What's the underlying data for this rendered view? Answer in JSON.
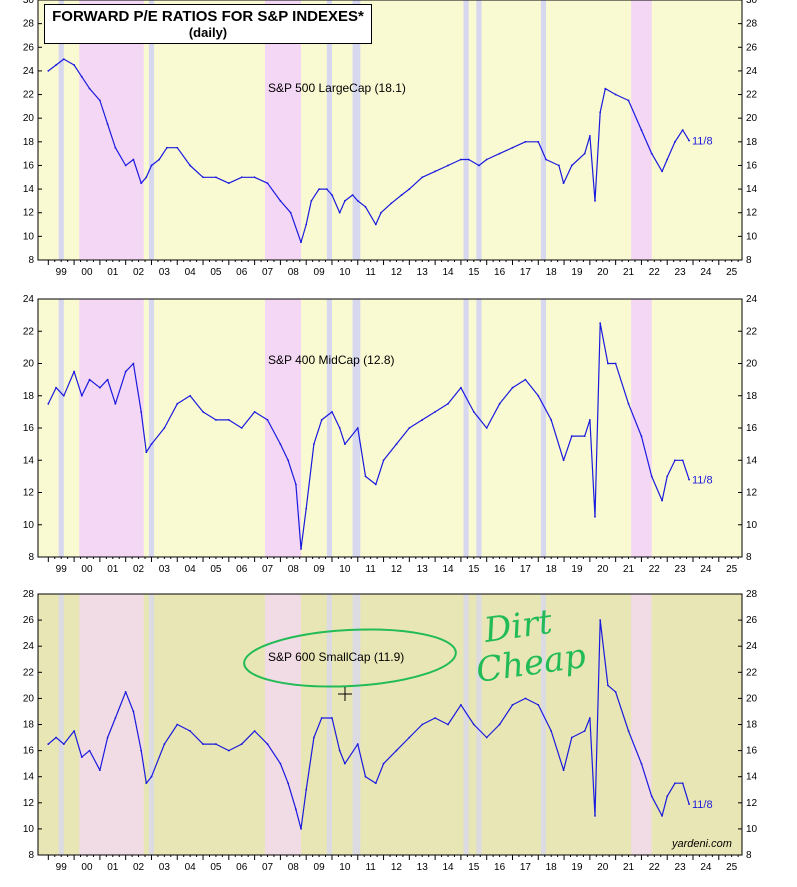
{
  "title": {
    "line1": "FORWARD P/E RATIOS FOR S&P INDEXES*",
    "line2": "(daily)"
  },
  "watermark": "yardeni.com",
  "handwritten_note": "Dirt Cheap",
  "colors": {
    "series": "#1a1adf",
    "background": "#fafad2",
    "bottom_background": "#e8e6b4",
    "recession_shade": "#f4d7f4",
    "correction_shade": "#d7d7f0",
    "annotation": "#22bb55"
  },
  "chart_data": [
    {
      "type": "line",
      "title": "S&P 500 LargeCap (18.1)",
      "end_label": "11/8",
      "x_ticks": [
        "99",
        "00",
        "01",
        "02",
        "03",
        "04",
        "05",
        "06",
        "07",
        "08",
        "09",
        "10",
        "11",
        "12",
        "13",
        "14",
        "15",
        "16",
        "17",
        "18",
        "19",
        "20",
        "21",
        "22",
        "23",
        "24",
        "25"
      ],
      "ylim": [
        8,
        30
      ],
      "y_ticks": [
        8,
        10,
        12,
        14,
        16,
        18,
        20,
        22,
        24,
        26,
        28,
        30
      ],
      "series": [
        {
          "x": [
            1999.0,
            1999.3,
            1999.6,
            2000.0,
            2000.3,
            2000.6,
            2001.0,
            2001.3,
            2001.6,
            2002.0,
            2002.3,
            2002.6,
            2002.8,
            2003.0,
            2003.3,
            2003.6,
            2004.0,
            2004.5,
            2005.0,
            2005.5,
            2006.0,
            2006.5,
            2007.0,
            2007.5,
            2008.0,
            2008.4,
            2008.8,
            2009.0,
            2009.2,
            2009.5,
            2009.8,
            2010.0,
            2010.3,
            2010.5,
            2010.8,
            2011.0,
            2011.3,
            2011.7,
            2011.9,
            2012.3,
            2012.7,
            2013.0,
            2013.5,
            2014.0,
            2014.5,
            2015.0,
            2015.3,
            2015.7,
            2016.0,
            2016.5,
            2017.0,
            2017.5,
            2018.0,
            2018.3,
            2018.8,
            2018.98,
            2019.3,
            2019.8,
            2020.0,
            2020.2,
            2020.4,
            2020.6,
            2021.0,
            2021.5,
            2022.0,
            2022.4,
            2022.8,
            2023.0,
            2023.3,
            2023.6,
            2023.85
          ],
          "y": [
            24.0,
            24.5,
            25.0,
            24.5,
            23.5,
            22.5,
            21.5,
            19.5,
            17.5,
            16.0,
            16.5,
            14.5,
            15.0,
            16.0,
            16.5,
            17.5,
            17.5,
            16.0,
            15.0,
            15.0,
            14.5,
            15.0,
            15.0,
            14.5,
            13.0,
            12.0,
            9.5,
            11.0,
            13.0,
            14.0,
            14.0,
            13.5,
            12.0,
            13.0,
            13.5,
            13.0,
            12.5,
            11.0,
            12.0,
            12.8,
            13.5,
            14.0,
            15.0,
            15.5,
            16.0,
            16.5,
            16.5,
            16.0,
            16.5,
            17.0,
            17.5,
            18.0,
            18.0,
            16.5,
            16.0,
            14.5,
            16.0,
            17.0,
            18.5,
            13.0,
            20.5,
            22.5,
            22.0,
            21.5,
            19.0,
            17.0,
            15.5,
            16.5,
            18.0,
            19.0,
            18.1
          ]
        }
      ]
    },
    {
      "type": "line",
      "title": "S&P 400 MidCap (12.8)",
      "end_label": "11/8",
      "x_ticks": [
        "99",
        "00",
        "01",
        "02",
        "03",
        "04",
        "05",
        "06",
        "07",
        "08",
        "09",
        "10",
        "11",
        "12",
        "13",
        "14",
        "15",
        "16",
        "17",
        "18",
        "19",
        "20",
        "21",
        "22",
        "23",
        "24",
        "25"
      ],
      "ylim": [
        8,
        24
      ],
      "y_ticks": [
        8,
        10,
        12,
        14,
        16,
        18,
        20,
        22,
        24
      ],
      "series": [
        {
          "x": [
            1999.0,
            1999.3,
            1999.6,
            2000.0,
            2000.3,
            2000.6,
            2001.0,
            2001.3,
            2001.6,
            2002.0,
            2002.3,
            2002.6,
            2002.8,
            2003.0,
            2003.5,
            2004.0,
            2004.5,
            2005.0,
            2005.5,
            2006.0,
            2006.5,
            2007.0,
            2007.5,
            2008.0,
            2008.3,
            2008.6,
            2008.8,
            2009.0,
            2009.3,
            2009.6,
            2010.0,
            2010.3,
            2010.5,
            2011.0,
            2011.3,
            2011.7,
            2012.0,
            2012.5,
            2013.0,
            2013.5,
            2014.0,
            2014.5,
            2015.0,
            2015.5,
            2016.0,
            2016.5,
            2017.0,
            2017.5,
            2018.0,
            2018.5,
            2018.98,
            2019.3,
            2019.8,
            2020.0,
            2020.2,
            2020.4,
            2020.7,
            2021.0,
            2021.5,
            2022.0,
            2022.4,
            2022.8,
            2023.0,
            2023.3,
            2023.6,
            2023.85
          ],
          "y": [
            17.5,
            18.5,
            18.0,
            19.5,
            18.0,
            19.0,
            18.5,
            19.0,
            17.5,
            19.5,
            20.0,
            17.0,
            14.5,
            15.0,
            16.0,
            17.5,
            18.0,
            17.0,
            16.5,
            16.5,
            16.0,
            17.0,
            16.5,
            15.0,
            14.0,
            12.5,
            8.5,
            11.0,
            15.0,
            16.5,
            17.0,
            16.0,
            15.0,
            16.0,
            13.0,
            12.5,
            14.0,
            15.0,
            16.0,
            16.5,
            17.0,
            17.5,
            18.5,
            17.0,
            16.0,
            17.5,
            18.5,
            19.0,
            18.0,
            16.5,
            14.0,
            15.5,
            15.5,
            16.5,
            10.5,
            22.5,
            20.0,
            20.0,
            17.5,
            15.5,
            13.0,
            11.5,
            13.0,
            14.0,
            14.0,
            12.8
          ]
        }
      ]
    },
    {
      "type": "line",
      "title": "S&P 600 SmallCap (11.9)",
      "end_label": "11/8",
      "x_ticks": [
        "99",
        "00",
        "01",
        "02",
        "03",
        "04",
        "05",
        "06",
        "07",
        "08",
        "09",
        "10",
        "11",
        "12",
        "13",
        "14",
        "15",
        "16",
        "17",
        "18",
        "19",
        "20",
        "21",
        "22",
        "23",
        "24",
        "25"
      ],
      "ylim": [
        8,
        28
      ],
      "y_ticks": [
        8,
        10,
        12,
        14,
        16,
        18,
        20,
        22,
        24,
        26,
        28
      ],
      "series": [
        {
          "x": [
            1999.0,
            1999.3,
            1999.6,
            2000.0,
            2000.3,
            2000.6,
            2001.0,
            2001.3,
            2001.6,
            2002.0,
            2002.3,
            2002.6,
            2002.8,
            2003.0,
            2003.5,
            2004.0,
            2004.5,
            2005.0,
            2005.5,
            2006.0,
            2006.5,
            2007.0,
            2007.5,
            2008.0,
            2008.3,
            2008.6,
            2008.8,
            2009.0,
            2009.3,
            2009.6,
            2010.0,
            2010.3,
            2010.5,
            2011.0,
            2011.3,
            2011.7,
            2012.0,
            2012.5,
            2013.0,
            2013.5,
            2014.0,
            2014.5,
            2015.0,
            2015.5,
            2016.0,
            2016.5,
            2017.0,
            2017.5,
            2018.0,
            2018.5,
            2018.98,
            2019.3,
            2019.8,
            2020.0,
            2020.2,
            2020.4,
            2020.7,
            2021.0,
            2021.5,
            2022.0,
            2022.4,
            2022.8,
            2023.0,
            2023.3,
            2023.6,
            2023.85
          ],
          "y": [
            16.5,
            17.0,
            16.5,
            17.5,
            15.5,
            16.0,
            14.5,
            17.0,
            18.5,
            20.5,
            19.0,
            16.0,
            13.5,
            14.0,
            16.5,
            18.0,
            17.5,
            16.5,
            16.5,
            16.0,
            16.5,
            17.5,
            16.5,
            15.0,
            13.5,
            11.5,
            10.0,
            13.0,
            17.0,
            18.5,
            18.5,
            16.0,
            15.0,
            16.5,
            14.0,
            13.5,
            15.0,
            16.0,
            17.0,
            18.0,
            18.5,
            18.0,
            19.5,
            18.0,
            17.0,
            18.0,
            19.5,
            20.0,
            19.5,
            17.5,
            14.5,
            17.0,
            17.5,
            18.5,
            11.0,
            26.0,
            21.0,
            20.5,
            17.5,
            15.0,
            12.5,
            11.0,
            12.5,
            13.5,
            13.5,
            11.9
          ]
        }
      ]
    }
  ]
}
